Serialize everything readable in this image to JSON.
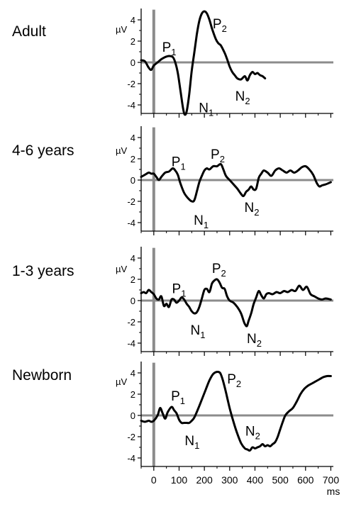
{
  "chart_data": {
    "type": "line",
    "x_unit": "ms",
    "y_unit": "µV",
    "xlim": [
      -50,
      710
    ],
    "ylim": [
      -5,
      5
    ],
    "yticks": [
      4,
      2,
      0,
      -2,
      -4
    ],
    "xticks": [
      0,
      100,
      200,
      300,
      400,
      500,
      600,
      700
    ],
    "panels": [
      {
        "label": "Adult",
        "points": [
          [
            -50,
            0.2
          ],
          [
            -35,
            0.1
          ],
          [
            -20,
            -0.5
          ],
          [
            -10,
            -0.7
          ],
          [
            0,
            -0.3
          ],
          [
            15,
            0.0
          ],
          [
            30,
            0.3
          ],
          [
            45,
            0.5
          ],
          [
            60,
            0.6
          ],
          [
            75,
            0.5
          ],
          [
            85,
            0.0
          ],
          [
            95,
            -1.0
          ],
          [
            105,
            -2.6
          ],
          [
            115,
            -4.2
          ],
          [
            122,
            -4.9
          ],
          [
            130,
            -4.6
          ],
          [
            140,
            -3.0
          ],
          [
            150,
            -0.8
          ],
          [
            160,
            0.9
          ],
          [
            170,
            2.6
          ],
          [
            180,
            3.9
          ],
          [
            190,
            4.6
          ],
          [
            200,
            4.8
          ],
          [
            210,
            4.6
          ],
          [
            220,
            4.0
          ],
          [
            230,
            3.2
          ],
          [
            245,
            2.2
          ],
          [
            255,
            1.8
          ],
          [
            265,
            1.6
          ],
          [
            280,
            0.9
          ],
          [
            290,
            0.3
          ],
          [
            300,
            -0.4
          ],
          [
            310,
            -0.9
          ],
          [
            320,
            -1.2
          ],
          [
            330,
            -1.5
          ],
          [
            345,
            -1.6
          ],
          [
            360,
            -1.3
          ],
          [
            370,
            -1.7
          ],
          [
            380,
            -1.2
          ],
          [
            390,
            -0.9
          ],
          [
            400,
            -1.1
          ],
          [
            410,
            -1.0
          ],
          [
            420,
            -1.2
          ],
          [
            430,
            -1.3
          ],
          [
            440,
            -1.5
          ]
        ],
        "components": [
          {
            "name": "P",
            "sub": "1",
            "x": 33,
            "y": 1.0
          },
          {
            "name": "N",
            "sub": "1",
            "x": 178,
            "y": -4.7
          },
          {
            "name": "P",
            "sub": "2",
            "x": 233,
            "y": 3.2
          },
          {
            "name": "N",
            "sub": "2",
            "x": 322,
            "y": -3.6
          }
        ]
      },
      {
        "label": "4-6 years",
        "points": [
          [
            -50,
            0.3
          ],
          [
            -35,
            0.5
          ],
          [
            -20,
            0.7
          ],
          [
            -10,
            0.6
          ],
          [
            0,
            0.6
          ],
          [
            10,
            0.3
          ],
          [
            20,
            0.0
          ],
          [
            30,
            0.3
          ],
          [
            45,
            0.7
          ],
          [
            60,
            0.8
          ],
          [
            75,
            1.1
          ],
          [
            85,
            0.9
          ],
          [
            95,
            0.5
          ],
          [
            105,
            -0.3
          ],
          [
            120,
            -1.2
          ],
          [
            135,
            -1.7
          ],
          [
            150,
            -2.0
          ],
          [
            160,
            -1.9
          ],
          [
            170,
            -1.1
          ],
          [
            180,
            -0.2
          ],
          [
            190,
            0.4
          ],
          [
            200,
            0.9
          ],
          [
            210,
            1.1
          ],
          [
            220,
            1.0
          ],
          [
            235,
            1.3
          ],
          [
            250,
            1.3
          ],
          [
            265,
            1.5
          ],
          [
            275,
            1.0
          ],
          [
            285,
            0.4
          ],
          [
            300,
            0.0
          ],
          [
            315,
            -0.4
          ],
          [
            330,
            -0.8
          ],
          [
            345,
            -1.3
          ],
          [
            355,
            -1.5
          ],
          [
            365,
            -1.1
          ],
          [
            375,
            -0.9
          ],
          [
            385,
            -0.6
          ],
          [
            395,
            -0.9
          ],
          [
            405,
            -0.8
          ],
          [
            415,
            0.2
          ],
          [
            425,
            0.6
          ],
          [
            435,
            0.9
          ],
          [
            450,
            0.7
          ],
          [
            465,
            0.4
          ],
          [
            480,
            0.9
          ],
          [
            495,
            1.1
          ],
          [
            510,
            0.9
          ],
          [
            525,
            0.7
          ],
          [
            540,
            0.9
          ],
          [
            555,
            0.7
          ],
          [
            570,
            0.9
          ],
          [
            585,
            1.2
          ],
          [
            600,
            1.3
          ],
          [
            615,
            1.0
          ],
          [
            630,
            0.5
          ],
          [
            645,
            -0.3
          ],
          [
            655,
            -0.6
          ],
          [
            665,
            -0.5
          ],
          [
            680,
            -0.4
          ],
          [
            700,
            -0.2
          ]
        ],
        "components": [
          {
            "name": "P",
            "sub": "1",
            "x": 70,
            "y": 1.3
          },
          {
            "name": "N",
            "sub": "1",
            "x": 158,
            "y": -4.2
          },
          {
            "name": "P",
            "sub": "2",
            "x": 225,
            "y": 2.0
          },
          {
            "name": "N",
            "sub": "2",
            "x": 358,
            "y": -3.0
          }
        ]
      },
      {
        "label": "1-3 years",
        "points": [
          [
            -50,
            0.7
          ],
          [
            -40,
            0.8
          ],
          [
            -30,
            0.7
          ],
          [
            -20,
            1.0
          ],
          [
            -10,
            0.8
          ],
          [
            0,
            0.6
          ],
          [
            10,
            0.2
          ],
          [
            20,
            0.1
          ],
          [
            30,
            0.4
          ],
          [
            40,
            -0.5
          ],
          [
            50,
            -0.3
          ],
          [
            60,
            -0.6
          ],
          [
            70,
            0.1
          ],
          [
            80,
            0.1
          ],
          [
            90,
            -0.2
          ],
          [
            100,
            0.0
          ],
          [
            110,
            0.3
          ],
          [
            120,
            0.1
          ],
          [
            130,
            -0.3
          ],
          [
            140,
            -0.6
          ],
          [
            150,
            -1.0
          ],
          [
            160,
            -1.2
          ],
          [
            170,
            -1.1
          ],
          [
            180,
            -0.6
          ],
          [
            190,
            0.2
          ],
          [
            200,
            1.0
          ],
          [
            210,
            1.1
          ],
          [
            220,
            0.8
          ],
          [
            230,
            1.6
          ],
          [
            240,
            1.9
          ],
          [
            250,
            2.0
          ],
          [
            260,
            1.7
          ],
          [
            270,
            1.2
          ],
          [
            280,
            1.1
          ],
          [
            290,
            0.4
          ],
          [
            300,
            0.0
          ],
          [
            315,
            -0.2
          ],
          [
            330,
            -0.6
          ],
          [
            345,
            -1.2
          ],
          [
            355,
            -1.9
          ],
          [
            360,
            -2.2
          ],
          [
            368,
            -2.4
          ],
          [
            375,
            -1.9
          ],
          [
            385,
            -1.2
          ],
          [
            395,
            -0.3
          ],
          [
            405,
            0.3
          ],
          [
            415,
            0.9
          ],
          [
            425,
            0.5
          ],
          [
            435,
            0.2
          ],
          [
            445,
            0.6
          ],
          [
            455,
            0.7
          ],
          [
            470,
            0.6
          ],
          [
            485,
            0.8
          ],
          [
            500,
            0.7
          ],
          [
            515,
            0.9
          ],
          [
            530,
            0.8
          ],
          [
            545,
            1.0
          ],
          [
            560,
            0.9
          ],
          [
            575,
            1.4
          ],
          [
            590,
            1.0
          ],
          [
            605,
            1.3
          ],
          [
            620,
            0.6
          ],
          [
            635,
            0.4
          ],
          [
            650,
            0.2
          ],
          [
            665,
            0.1
          ],
          [
            680,
            0.2
          ],
          [
            700,
            0.1
          ]
        ],
        "components": [
          {
            "name": "P",
            "sub": "1",
            "x": 72,
            "y": 0.7
          },
          {
            "name": "N",
            "sub": "1",
            "x": 145,
            "y": -3.2
          },
          {
            "name": "P",
            "sub": "2",
            "x": 230,
            "y": 2.6
          },
          {
            "name": "N",
            "sub": "2",
            "x": 368,
            "y": -4.0
          }
        ]
      },
      {
        "label": "Newborn",
        "points": [
          [
            -50,
            -0.5
          ],
          [
            -35,
            -0.6
          ],
          [
            -20,
            -0.5
          ],
          [
            -10,
            -0.6
          ],
          [
            0,
            -0.5
          ],
          [
            15,
            0.0
          ],
          [
            25,
            0.7
          ],
          [
            35,
            0.2
          ],
          [
            45,
            -0.3
          ],
          [
            55,
            0.3
          ],
          [
            70,
            0.8
          ],
          [
            80,
            0.5
          ],
          [
            90,
            0.2
          ],
          [
            100,
            -0.4
          ],
          [
            110,
            -0.7
          ],
          [
            120,
            -0.7
          ],
          [
            130,
            -0.7
          ],
          [
            140,
            -0.7
          ],
          [
            150,
            -0.5
          ],
          [
            160,
            -0.2
          ],
          [
            175,
            0.6
          ],
          [
            190,
            1.5
          ],
          [
            205,
            2.4
          ],
          [
            220,
            3.3
          ],
          [
            235,
            3.9
          ],
          [
            250,
            4.1
          ],
          [
            262,
            4.0
          ],
          [
            272,
            3.4
          ],
          [
            282,
            2.5
          ],
          [
            292,
            1.5
          ],
          [
            302,
            0.5
          ],
          [
            315,
            -0.6
          ],
          [
            330,
            -1.7
          ],
          [
            345,
            -2.6
          ],
          [
            360,
            -3.1
          ],
          [
            370,
            -3.2
          ],
          [
            380,
            -3.3
          ],
          [
            390,
            -3.0
          ],
          [
            400,
            -3.1
          ],
          [
            410,
            -3.0
          ],
          [
            420,
            -2.9
          ],
          [
            430,
            -2.7
          ],
          [
            440,
            -2.9
          ],
          [
            450,
            -2.8
          ],
          [
            460,
            -2.9
          ],
          [
            470,
            -2.7
          ],
          [
            480,
            -2.5
          ],
          [
            490,
            -2.0
          ],
          [
            500,
            -1.3
          ],
          [
            510,
            -0.6
          ],
          [
            520,
            0.0
          ],
          [
            535,
            0.4
          ],
          [
            550,
            0.7
          ],
          [
            565,
            1.3
          ],
          [
            580,
            2.0
          ],
          [
            595,
            2.5
          ],
          [
            610,
            2.8
          ],
          [
            625,
            3.0
          ],
          [
            640,
            3.2
          ],
          [
            655,
            3.4
          ],
          [
            670,
            3.6
          ],
          [
            685,
            3.7
          ],
          [
            700,
            3.7
          ]
        ],
        "components": [
          {
            "name": "P",
            "sub": "1",
            "x": 68,
            "y": 1.4
          },
          {
            "name": "N",
            "sub": "1",
            "x": 122,
            "y": -2.8
          },
          {
            "name": "P",
            "sub": "2",
            "x": 290,
            "y": 3.0
          },
          {
            "name": "N",
            "sub": "2",
            "x": 362,
            "y": -1.9
          }
        ]
      }
    ]
  }
}
